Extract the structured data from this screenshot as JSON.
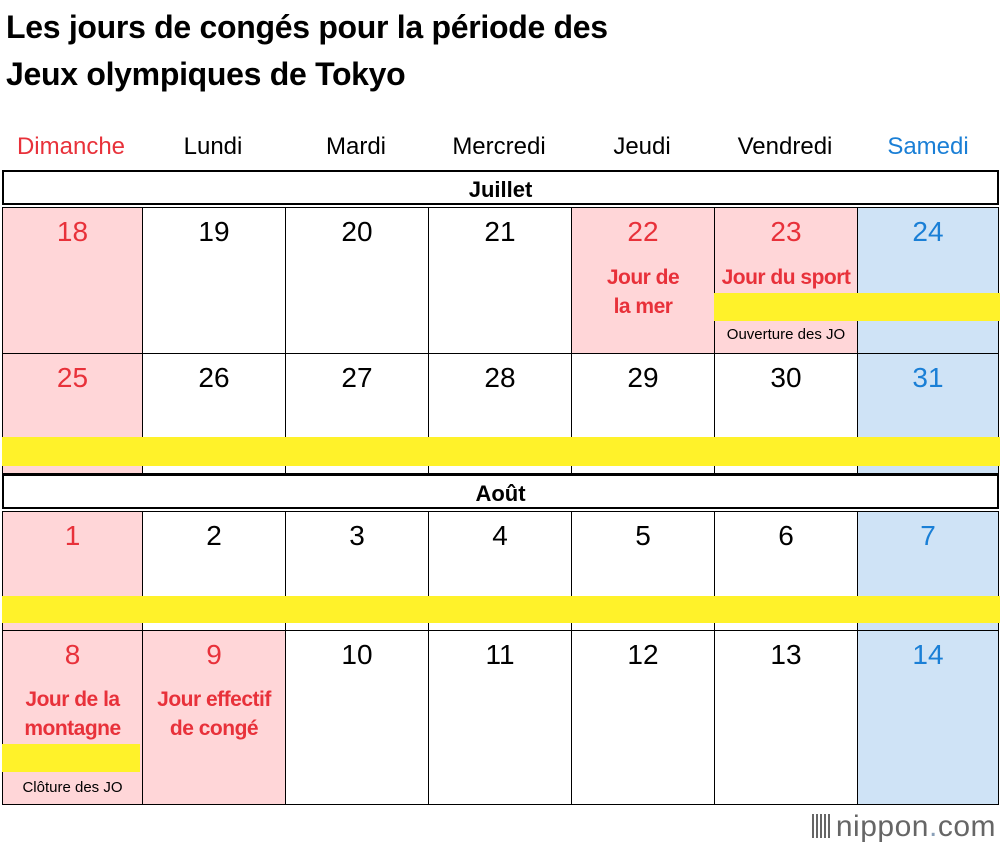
{
  "title_line1": "Les jours de congés pour la période des",
  "title_line2": "Jeux olympiques de Tokyo",
  "days_of_week": [
    "Dimanche",
    "Lundi",
    "Mardi",
    "Mercredi",
    "Jeudi",
    "Vendredi",
    "Samedi"
  ],
  "months": {
    "july": "Juillet",
    "august": "Août"
  },
  "colors": {
    "sunday": "#e8313a",
    "saturday": "#1a7fd6",
    "holiday_fill": "#ffd6d8",
    "saturday_fill": "#cfe3f6",
    "games_band": "#fff22a"
  },
  "july_week1": [
    "18",
    "19",
    "20",
    "21",
    "22",
    "23",
    "24"
  ],
  "july_week2": [
    "25",
    "26",
    "27",
    "28",
    "29",
    "30",
    "31"
  ],
  "aug_week1": [
    "1",
    "2",
    "3",
    "4",
    "5",
    "6",
    "7"
  ],
  "aug_week2": [
    "8",
    "9",
    "10",
    "11",
    "12",
    "13",
    "14"
  ],
  "holidays": {
    "sea_day": "Jour de la mer",
    "sports_day": "Jour du sport",
    "mountain_day": "Jour de la montagne",
    "substitute_day": "Jour effectif de congé"
  },
  "notes": {
    "opening": "Ouverture des JO",
    "closing": "Clôture des JO"
  },
  "logo": {
    "name": "nippon",
    "dot": ".",
    "tld": "com"
  }
}
